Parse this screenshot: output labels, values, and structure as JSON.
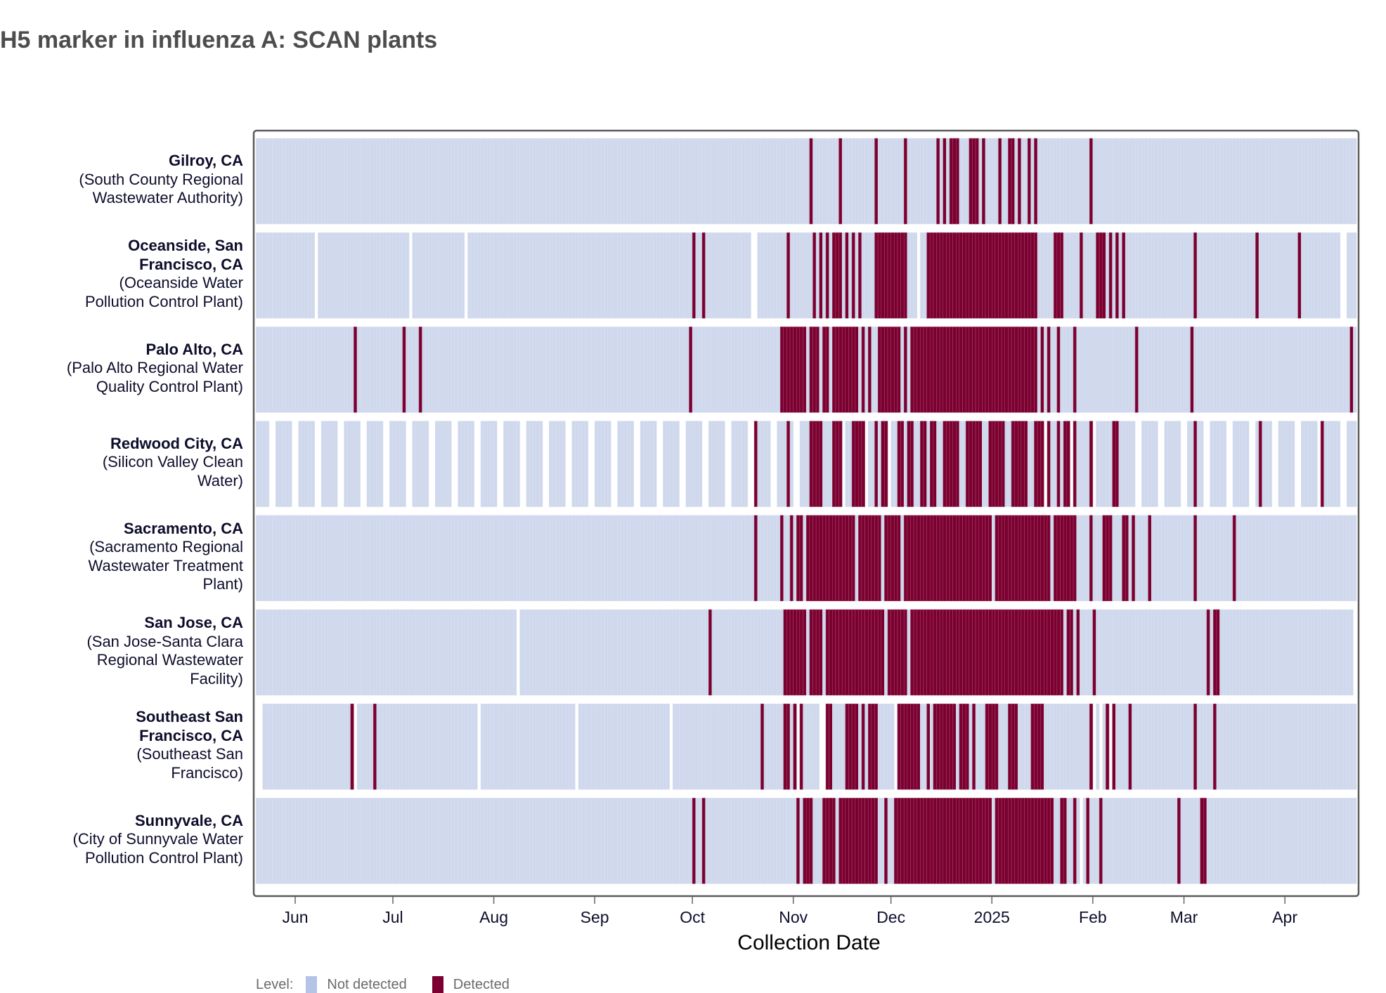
{
  "title": "H5 marker in influenza A: SCAN plants",
  "colors": {
    "not_detected": "#cfd8ec",
    "detected": "#7b0030",
    "legend_not_detected": "#b4c3e6"
  },
  "legend": {
    "title": "Level:",
    "items": [
      "Not detected",
      "Detected"
    ]
  },
  "chart_data": {
    "type": "heatmap",
    "title": "H5 marker in influenza A: SCAN plants",
    "xlabel": "Collection Date",
    "ylabel": "",
    "x_range": [
      "2024-05-20",
      "2025-04-22"
    ],
    "x_ticks": [
      {
        "date": "2024-06-01",
        "label": "Jun"
      },
      {
        "date": "2024-07-01",
        "label": "Jul"
      },
      {
        "date": "2024-08-01",
        "label": "Aug"
      },
      {
        "date": "2024-09-01",
        "label": "Sep"
      },
      {
        "date": "2024-10-01",
        "label": "Oct"
      },
      {
        "date": "2024-11-01",
        "label": "Nov"
      },
      {
        "date": "2024-12-01",
        "label": "Dec"
      },
      {
        "date": "2025-01-01",
        "label": "2025"
      },
      {
        "date": "2025-02-01",
        "label": "Feb"
      },
      {
        "date": "2025-03-01",
        "label": "Mar"
      },
      {
        "date": "2025-04-01",
        "label": "Apr"
      }
    ],
    "levels": [
      "Not detected",
      "Detected"
    ],
    "sites": [
      {
        "name": "Gilroy, CA",
        "plant_lines": [
          "(South County Regional",
          "Wastewater Authority)"
        ],
        "sampling": "daily",
        "start": "2024-05-20",
        "end": "2025-04-22",
        "missing": [],
        "detected": [
          [
            "2024-11-06",
            "2024-11-06"
          ],
          [
            "2024-11-15",
            "2024-11-15"
          ],
          [
            "2024-11-26",
            "2024-11-26"
          ],
          [
            "2024-12-05",
            "2024-12-05"
          ],
          [
            "2024-12-15",
            "2024-12-15"
          ],
          [
            "2024-12-17",
            "2024-12-17"
          ],
          [
            "2024-12-19",
            "2024-12-21"
          ],
          [
            "2024-12-25",
            "2024-12-27"
          ],
          [
            "2024-12-29",
            "2024-12-29"
          ],
          [
            "2025-01-03",
            "2025-01-03"
          ],
          [
            "2025-01-06",
            "2025-01-07"
          ],
          [
            "2025-01-09",
            "2025-01-09"
          ],
          [
            "2025-01-12",
            "2025-01-12"
          ],
          [
            "2025-01-14",
            "2025-01-14"
          ],
          [
            "2025-01-31",
            "2025-01-31"
          ]
        ]
      },
      {
        "name_lines": [
          "Oceanside, San",
          "Francisco, CA"
        ],
        "name": "Oceanside, San Francisco, CA",
        "plant_lines": [
          "(Oceanside Water",
          "Pollution Control Plant)"
        ],
        "sampling": "daily",
        "start": "2024-05-20",
        "end": "2025-04-22",
        "missing": [
          "2024-06-07",
          "2024-07-06",
          "2024-07-23",
          "2024-10-19",
          "2024-10-20",
          "2024-12-09",
          "2025-04-18",
          "2025-04-19"
        ],
        "detected": [
          [
            "2024-10-01",
            "2024-10-01"
          ],
          [
            "2024-10-04",
            "2024-10-04"
          ],
          [
            "2024-10-30",
            "2024-10-30"
          ],
          [
            "2024-11-07",
            "2024-11-07"
          ],
          [
            "2024-11-09",
            "2024-11-09"
          ],
          [
            "2024-11-11",
            "2024-11-11"
          ],
          [
            "2024-11-13",
            "2024-11-15"
          ],
          [
            "2024-11-17",
            "2024-11-17"
          ],
          [
            "2024-11-19",
            "2024-11-19"
          ],
          [
            "2024-11-21",
            "2024-11-21"
          ],
          [
            "2024-11-26",
            "2024-12-05"
          ],
          [
            "2024-12-12",
            "2025-01-14"
          ],
          [
            "2025-01-20",
            "2025-01-22"
          ],
          [
            "2025-01-28",
            "2025-01-28"
          ],
          [
            "2025-02-02",
            "2025-02-04"
          ],
          [
            "2025-02-06",
            "2025-02-06"
          ],
          [
            "2025-02-08",
            "2025-02-08"
          ],
          [
            "2025-02-10",
            "2025-02-10"
          ],
          [
            "2025-03-04",
            "2025-03-04"
          ],
          [
            "2025-03-23",
            "2025-03-23"
          ],
          [
            "2025-04-05",
            "2025-04-05"
          ]
        ]
      },
      {
        "name": "Palo Alto, CA",
        "plant_lines": [
          "(Palo Alto Regional Water",
          "Quality Control Plant)"
        ],
        "sampling": "daily",
        "start": "2024-05-20",
        "end": "2025-04-22",
        "missing": [],
        "detected": [
          [
            "2024-06-19",
            "2024-06-19"
          ],
          [
            "2024-07-04",
            "2024-07-04"
          ],
          [
            "2024-07-09",
            "2024-07-09"
          ],
          [
            "2024-09-30",
            "2024-09-30"
          ],
          [
            "2024-10-28",
            "2024-11-04"
          ],
          [
            "2024-11-06",
            "2024-11-08"
          ],
          [
            "2024-11-10",
            "2024-11-11"
          ],
          [
            "2024-11-13",
            "2024-11-13"
          ],
          [
            "2024-11-14",
            "2024-11-20"
          ],
          [
            "2024-11-22",
            "2024-11-22"
          ],
          [
            "2024-11-24",
            "2024-11-24"
          ],
          [
            "2024-11-27",
            "2024-12-03"
          ],
          [
            "2024-12-05",
            "2024-12-05"
          ],
          [
            "2024-12-07",
            "2024-12-26"
          ],
          [
            "2024-12-27",
            "2025-01-09"
          ],
          [
            "2025-01-10",
            "2025-01-13"
          ],
          [
            "2025-01-14",
            "2025-01-14"
          ],
          [
            "2025-01-16",
            "2025-01-16"
          ],
          [
            "2025-01-18",
            "2025-01-18"
          ],
          [
            "2025-01-21",
            "2025-01-21"
          ],
          [
            "2025-01-26",
            "2025-01-26"
          ],
          [
            "2025-02-14",
            "2025-02-14"
          ],
          [
            "2025-03-03",
            "2025-03-03"
          ],
          [
            "2025-04-21",
            "2025-04-21"
          ]
        ]
      },
      {
        "name": "Redwood City, CA",
        "plant_lines": [
          "(Silicon Valley Clean",
          "Water)"
        ],
        "sampling": "weekdays",
        "start": "2024-05-20",
        "end": "2025-04-22",
        "missing": [],
        "detected": [
          [
            "2024-10-20",
            "2024-10-20"
          ],
          [
            "2024-10-30",
            "2024-10-30"
          ],
          [
            "2024-11-06",
            "2024-11-09"
          ],
          [
            "2024-11-13",
            "2024-11-15"
          ],
          [
            "2024-11-19",
            "2024-11-22"
          ],
          [
            "2024-11-26",
            "2024-11-26"
          ],
          [
            "2024-11-28",
            "2024-11-29"
          ],
          [
            "2024-12-03",
            "2024-12-04"
          ],
          [
            "2024-12-06",
            "2024-12-07"
          ],
          [
            "2024-12-10",
            "2024-12-11"
          ],
          [
            "2024-12-13",
            "2024-12-14"
          ],
          [
            "2024-12-17",
            "2024-12-21"
          ],
          [
            "2024-12-24",
            "2024-12-28"
          ],
          [
            "2024-12-31",
            "2025-01-04"
          ],
          [
            "2025-01-07",
            "2025-01-11"
          ],
          [
            "2025-01-14",
            "2025-01-16"
          ],
          [
            "2025-01-18",
            "2025-01-18"
          ],
          [
            "2025-01-21",
            "2025-01-21"
          ],
          [
            "2025-01-23",
            "2025-01-24"
          ],
          [
            "2025-01-26",
            "2025-01-26"
          ],
          [
            "2025-01-31",
            "2025-01-31"
          ],
          [
            "2025-02-07",
            "2025-02-08"
          ],
          [
            "2025-03-04",
            "2025-03-04"
          ],
          [
            "2025-03-24",
            "2025-03-24"
          ],
          [
            "2025-04-12",
            "2025-04-12"
          ]
        ]
      },
      {
        "name": "Sacramento, CA",
        "plant_lines": [
          "(Sacramento Regional",
          "Wastewater Treatment",
          "Plant)"
        ],
        "sampling": "daily",
        "start": "2024-05-20",
        "end": "2025-04-22",
        "missing": [],
        "detected": [
          [
            "2024-10-20",
            "2024-10-20"
          ],
          [
            "2024-10-28",
            "2024-10-28"
          ],
          [
            "2024-10-31",
            "2024-10-31"
          ],
          [
            "2024-11-02",
            "2024-11-03"
          ],
          [
            "2024-11-05",
            "2024-11-19"
          ],
          [
            "2024-11-21",
            "2024-11-27"
          ],
          [
            "2024-11-29",
            "2024-12-03"
          ],
          [
            "2024-12-05",
            "2024-12-31"
          ],
          [
            "2025-01-02",
            "2025-01-18"
          ],
          [
            "2025-01-20",
            "2025-01-26"
          ],
          [
            "2025-01-31",
            "2025-01-31"
          ],
          [
            "2025-02-04",
            "2025-02-06"
          ],
          [
            "2025-02-10",
            "2025-02-11"
          ],
          [
            "2025-02-13",
            "2025-02-13"
          ],
          [
            "2025-02-18",
            "2025-02-18"
          ],
          [
            "2025-03-04",
            "2025-03-04"
          ],
          [
            "2025-03-16",
            "2025-03-16"
          ]
        ]
      },
      {
        "name": "San Jose, CA",
        "plant_lines": [
          "(San Jose-Santa Clara",
          "Regional Wastewater",
          "Facility)"
        ],
        "sampling": "daily",
        "start": "2024-05-20",
        "end": "2025-04-21",
        "missing": [
          "2024-08-08"
        ],
        "detected": [
          [
            "2024-10-06",
            "2024-10-06"
          ],
          [
            "2024-10-29",
            "2024-11-04"
          ],
          [
            "2024-11-06",
            "2024-11-09"
          ],
          [
            "2024-11-11",
            "2024-11-16"
          ],
          [
            "2024-11-17",
            "2024-11-27"
          ],
          [
            "2024-11-28",
            "2024-11-28"
          ],
          [
            "2024-11-30",
            "2024-12-05"
          ],
          [
            "2024-12-07",
            "2025-01-06"
          ],
          [
            "2025-01-07",
            "2025-01-21"
          ],
          [
            "2025-01-22",
            "2025-01-22"
          ],
          [
            "2025-01-24",
            "2025-01-25"
          ],
          [
            "2025-01-27",
            "2025-01-27"
          ],
          [
            "2025-02-01",
            "2025-02-01"
          ],
          [
            "2025-03-08",
            "2025-03-08"
          ],
          [
            "2025-03-10",
            "2025-03-10"
          ],
          [
            "2025-03-11",
            "2025-03-11"
          ]
        ]
      },
      {
        "name_lines": [
          "Southeast San",
          "Francisco, CA"
        ],
        "name": "Southeast San Francisco, CA",
        "plant_lines": [
          "(Southeast San",
          "Francisco)"
        ],
        "sampling": "daily",
        "start": "2024-05-22",
        "end": "2025-04-22",
        "missing": [
          "2024-06-19",
          "2024-07-27",
          "2024-08-26",
          "2024-09-24",
          "2024-11-02",
          "2024-11-09",
          "2024-11-10",
          "2024-12-02",
          "2025-02-01",
          "2025-02-03",
          "2025-02-06"
        ],
        "detected": [
          [
            "2024-06-18",
            "2024-06-18"
          ],
          [
            "2024-06-25",
            "2024-06-25"
          ],
          [
            "2024-10-22",
            "2024-10-22"
          ],
          [
            "2024-10-29",
            "2024-10-30"
          ],
          [
            "2024-11-01",
            "2024-11-01"
          ],
          [
            "2024-11-03",
            "2024-11-03"
          ],
          [
            "2024-11-11",
            "2024-11-12"
          ],
          [
            "2024-11-17",
            "2024-11-20"
          ],
          [
            "2024-11-22",
            "2024-11-22"
          ],
          [
            "2024-11-24",
            "2024-11-26"
          ],
          [
            "2024-12-03",
            "2024-12-06"
          ],
          [
            "2024-12-07",
            "2024-12-09"
          ],
          [
            "2024-12-12",
            "2024-12-12"
          ],
          [
            "2024-12-14",
            "2024-12-20"
          ],
          [
            "2024-12-22",
            "2024-12-24"
          ],
          [
            "2024-12-26",
            "2024-12-26"
          ],
          [
            "2024-12-30",
            "2025-01-02"
          ],
          [
            "2025-01-06",
            "2025-01-08"
          ],
          [
            "2025-01-13",
            "2025-01-16"
          ],
          [
            "2025-01-31",
            "2025-01-31"
          ],
          [
            "2025-02-05",
            "2025-02-07"
          ],
          [
            "2025-02-12",
            "2025-02-12"
          ],
          [
            "2025-03-04",
            "2025-03-04"
          ],
          [
            "2025-03-10",
            "2025-03-10"
          ]
        ]
      },
      {
        "name": "Sunnyvale, CA",
        "plant_lines": [
          "(City of Sunnyvale Water",
          "Pollution Control Plant)"
        ],
        "sampling": "daily",
        "start": "2024-05-20",
        "end": "2025-04-22",
        "missing": [
          "2025-01-28"
        ],
        "detected": [
          [
            "2024-10-01",
            "2024-10-01"
          ],
          [
            "2024-10-04",
            "2024-10-04"
          ],
          [
            "2024-11-02",
            "2024-11-02"
          ],
          [
            "2024-11-04",
            "2024-11-06"
          ],
          [
            "2024-11-10",
            "2024-11-13"
          ],
          [
            "2024-11-15",
            "2024-11-16"
          ],
          [
            "2024-11-17",
            "2024-11-26"
          ],
          [
            "2024-11-29",
            "2024-11-29"
          ],
          [
            "2024-12-02",
            "2024-12-31"
          ],
          [
            "2025-01-02",
            "2025-01-19"
          ],
          [
            "2025-01-22",
            "2025-01-23"
          ],
          [
            "2025-01-26",
            "2025-01-26"
          ],
          [
            "2025-01-30",
            "2025-01-30"
          ],
          [
            "2025-02-03",
            "2025-02-03"
          ],
          [
            "2025-02-27",
            "2025-02-27"
          ],
          [
            "2025-03-06",
            "2025-03-07"
          ]
        ]
      }
    ]
  }
}
